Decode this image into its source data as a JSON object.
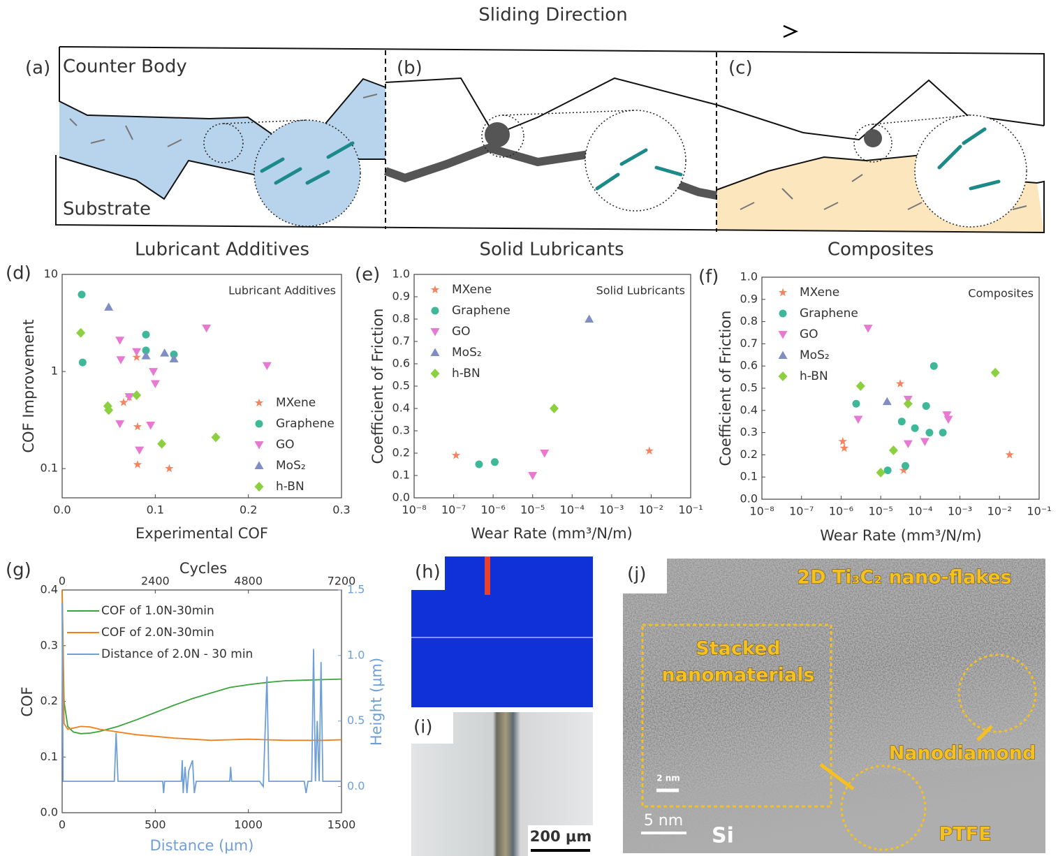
{
  "diagram": {
    "title": "Sliding Direction",
    "panel_labels": [
      "(a)",
      "(b)",
      "(c)"
    ],
    "counter_body": "Counter Body",
    "substrate": "Substrate",
    "sections": [
      "Lubricant Additives",
      "Solid Lubricants",
      "Composites"
    ]
  },
  "images": {
    "h": {
      "label": "(h)"
    },
    "i": {
      "label": "(i)",
      "scale_bar": "200 μm"
    },
    "j": {
      "label": "(j)",
      "annotations": [
        "2D Ti₃C₂ nano-flakes",
        "Stacked",
        "nanomaterials",
        "Nanodiamond",
        "PTFE",
        "Si",
        "5 nm",
        "2 nm"
      ]
    }
  },
  "chart_data": [
    {
      "type": "scatter",
      "panel_label": "(d)",
      "annotation": "Lubricant Additives",
      "xlabel": "Experimental COF",
      "ylabel": "COF Improvement",
      "xlim": [
        0,
        0.3
      ],
      "xticks": [
        {
          "value": 0,
          "label": "0.0"
        },
        0.1,
        0.2,
        0.3
      ],
      "ylim": [
        0.05,
        10
      ],
      "ylog": true,
      "yticks": [
        0.1,
        1,
        10
      ],
      "grid": false,
      "legend": "center right",
      "series": [
        {
          "name": "MXene",
          "color": "#f4845f",
          "marker": "star",
          "x": [
            0.066,
            0.072,
            0.08,
            0.081,
            0.081,
            0.115
          ],
          "values": [
            0.48,
            0.54,
            1.4,
            0.27,
            0.11,
            0.1
          ]
        },
        {
          "name": "Graphene",
          "color": "#3fb89a",
          "marker": "circle",
          "x": [
            0.021,
            0.022,
            0.09,
            0.09,
            0.12
          ],
          "values": [
            6.2,
            1.24,
            2.4,
            1.65,
            1.5
          ]
        },
        {
          "name": "GO",
          "color": "#e879d3",
          "marker": "triangle-down",
          "x": [
            0.155,
            0.22,
            0.062,
            0.08,
            0.063,
            0.098,
            0.1,
            0.072,
            0.062,
            0.095,
            0.083
          ],
          "values": [
            2.8,
            1.15,
            2.1,
            1.6,
            1.32,
            1.0,
            0.75,
            0.55,
            0.29,
            0.28,
            0.155
          ]
        },
        {
          "name": "MoS₂",
          "color": "#7f8fc4",
          "marker": "triangle-up",
          "x": [
            0.05,
            0.09,
            0.11,
            0.12
          ],
          "values": [
            4.6,
            1.45,
            1.55,
            1.35
          ]
        },
        {
          "name": "h-BN",
          "color": "#8ccf3f",
          "marker": "diamond",
          "x": [
            0.02,
            0.08,
            0.049,
            0.05,
            0.107,
            0.165
          ],
          "values": [
            2.5,
            0.57,
            0.44,
            0.4,
            0.18,
            0.21
          ]
        }
      ]
    },
    {
      "type": "scatter",
      "panel_label": "(e)",
      "annotation": "Solid Lubricants",
      "xlabel": "Wear Rate (mm³/N/m)",
      "ylabel": "Coefficient of Friction",
      "xlim": [
        1e-08,
        0.1
      ],
      "xlog": true,
      "xticks": [
        {
          "value": 1e-08,
          "label": "10⁻⁸"
        },
        {
          "value": 1e-07,
          "label": "10⁻⁷"
        },
        {
          "value": 1e-06,
          "label": "10⁻⁶"
        },
        {
          "value": 1e-05,
          "label": "10⁻⁵"
        },
        {
          "value": 0.0001,
          "label": "10⁻⁴"
        },
        {
          "value": 0.001,
          "label": "10⁻³"
        },
        {
          "value": 0.01,
          "label": "10⁻²"
        },
        {
          "value": 0.1,
          "label": "10⁻¹"
        }
      ],
      "ylim": [
        0,
        1
      ],
      "yticks": [
        {
          "value": 0,
          "label": "0.0"
        },
        0.1,
        0.2,
        0.3,
        0.4,
        0.5,
        0.6,
        0.7,
        0.8,
        0.9,
        {
          "value": 1,
          "label": "1.0"
        }
      ],
      "grid": false,
      "legend": "upper left",
      "series": [
        {
          "name": "MXene",
          "color": "#f4845f",
          "marker": "star",
          "x": [
            1.15e-07,
            0.009
          ],
          "values": [
            0.19,
            0.21
          ]
        },
        {
          "name": "Graphene",
          "color": "#3fb89a",
          "marker": "circle",
          "x": [
            4.4e-07,
            1.1e-06
          ],
          "values": [
            0.15,
            0.16
          ]
        },
        {
          "name": "GO",
          "color": "#e879d3",
          "marker": "triangle-down",
          "x": [
            1e-05,
            2e-05
          ],
          "values": [
            0.1,
            0.2
          ]
        },
        {
          "name": "MoS₂",
          "color": "#7f8fc4",
          "marker": "triangle-up",
          "x": [
            0.00027
          ],
          "values": [
            0.8
          ]
        },
        {
          "name": "h-BN",
          "color": "#8ccf3f",
          "marker": "diamond",
          "x": [
            3.5e-05
          ],
          "values": [
            0.4
          ]
        }
      ]
    },
    {
      "type": "scatter",
      "panel_label": "(f)",
      "annotation": "Composites",
      "xlabel": "Wear Rate (mm³/N/m)",
      "ylabel": "Coefficient of Friction",
      "xlim": [
        1e-08,
        0.1
      ],
      "xlog": true,
      "xticks": [
        {
          "value": 1e-08,
          "label": "10⁻⁸"
        },
        {
          "value": 1e-07,
          "label": "10⁻⁷"
        },
        {
          "value": 1e-06,
          "label": "10⁻⁶"
        },
        {
          "value": 1e-05,
          "label": "10⁻⁵"
        },
        {
          "value": 0.0001,
          "label": "10⁻⁴"
        },
        {
          "value": 0.001,
          "label": "10⁻³"
        },
        {
          "value": 0.01,
          "label": "10⁻²"
        },
        {
          "value": 0.1,
          "label": "10⁻¹"
        }
      ],
      "ylim": [
        0,
        1
      ],
      "yticks": [
        {
          "value": 0,
          "label": "0.0"
        },
        0.1,
        0.2,
        0.3,
        0.4,
        0.5,
        0.6,
        0.7,
        0.8,
        0.9,
        {
          "value": 1,
          "label": "1.0"
        }
      ],
      "grid": false,
      "legend": "upper left",
      "series": [
        {
          "name": "MXene",
          "color": "#f4845f",
          "marker": "star",
          "x": [
            1.1e-06,
            1.2e-06,
            3.1e-05,
            3.8e-05,
            0.018
          ],
          "values": [
            0.26,
            0.23,
            0.52,
            0.13,
            0.2
          ]
        },
        {
          "name": "Graphene",
          "color": "#3fb89a",
          "marker": "circle",
          "x": [
            2.4e-06,
            1.5e-05,
            3.4e-05,
            4.2e-05,
            7.3e-05,
            0.00014,
            0.00022,
            0.00017,
            0.00037
          ],
          "values": [
            0.43,
            0.13,
            0.35,
            0.15,
            0.32,
            0.42,
            0.6,
            0.3,
            0.3
          ]
        },
        {
          "name": "GO",
          "color": "#e879d3",
          "marker": "triangle-down",
          "x": [
            4.8e-06,
            2.7e-06,
            4.9e-05,
            4.9e-05,
            0.00013,
            0.00047,
            0.00051
          ],
          "values": [
            0.77,
            0.36,
            0.45,
            0.25,
            0.26,
            0.38,
            0.36
          ]
        },
        {
          "name": "MoS₂",
          "color": "#7f8fc4",
          "marker": "triangle-up",
          "x": [
            1.45e-05
          ],
          "values": [
            0.44
          ]
        },
        {
          "name": "h-BN",
          "color": "#8ccf3f",
          "marker": "diamond",
          "x": [
            3.1e-06,
            4.9e-05,
            2.1e-05,
            1e-05,
            0.0078
          ],
          "values": [
            0.51,
            0.43,
            0.22,
            0.12,
            0.57
          ]
        }
      ]
    },
    {
      "type": "line",
      "panel_label": "(g)",
      "xlabel": "Distance (μm)",
      "ylabel": "COF",
      "y2label": "Height (μm)",
      "x2label": "Cycles",
      "xlim": [
        0,
        1500
      ],
      "xticks": [
        0,
        500,
        1000,
        1500
      ],
      "x2lim": [
        0,
        7200
      ],
      "x2ticks": [
        0,
        2400,
        4800,
        7200
      ],
      "ylim": [
        0,
        0.4
      ],
      "yticks": [
        {
          "value": 0,
          "label": "0.0"
        },
        0.1,
        0.2,
        0.3,
        0.4
      ],
      "y2lim": [
        -0.2,
        1.5
      ],
      "y2ticks": [
        {
          "value": 0,
          "label": "0.0"
        },
        0.5,
        {
          "value": 1,
          "label": "1.0"
        },
        1.5
      ],
      "grid": false,
      "legend": "upper left",
      "series": [
        {
          "name": "COF of 1.0N-30min",
          "color": "#3aa53a",
          "x": [
            0,
            10,
            30,
            60,
            100,
            150,
            200,
            300,
            400,
            500,
            600,
            700,
            800,
            900,
            1000,
            1100,
            1200,
            1300,
            1400,
            1500
          ],
          "values": [
            0.4,
            0.2,
            0.155,
            0.145,
            0.142,
            0.143,
            0.146,
            0.155,
            0.167,
            0.18,
            0.193,
            0.205,
            0.215,
            0.225,
            0.23,
            0.234,
            0.237,
            0.238,
            0.239,
            0.24
          ]
        },
        {
          "name": "COF of 2.0N-30min",
          "color": "#f07f1b",
          "x": [
            0,
            10,
            30,
            60,
            100,
            150,
            200,
            300,
            400,
            500,
            600,
            700,
            800,
            900,
            1000,
            1100,
            1200,
            1300,
            1400,
            1500
          ],
          "values": [
            0.4,
            0.16,
            0.15,
            0.152,
            0.155,
            0.154,
            0.15,
            0.145,
            0.14,
            0.137,
            0.134,
            0.132,
            0.13,
            0.131,
            0.132,
            0.131,
            0.13,
            0.13,
            0.13,
            0.131
          ]
        },
        {
          "name": "Distance of 2.0N - 30 min",
          "color": "#6f9fd8",
          "axis": "y2",
          "x": [
            0,
            5,
            10,
            280,
            290,
            300,
            540,
            545,
            550,
            640,
            645,
            650,
            660,
            670,
            680,
            700,
            710,
            720,
            900,
            905,
            910,
            1060,
            1080,
            1100,
            1110,
            1120,
            1300,
            1310,
            1320,
            1340,
            1350,
            1360,
            1370,
            1380,
            1390,
            1400,
            1500
          ],
          "values": [
            1.4,
            0.04,
            0.04,
            0.04,
            0.41,
            0.04,
            0.04,
            -0.05,
            0.04,
            0.04,
            0.2,
            -0.05,
            0.15,
            -0.05,
            0.12,
            0.2,
            -0.05,
            0.04,
            0.04,
            0.15,
            0.04,
            0.04,
            0.0,
            0.84,
            0.04,
            0.04,
            0.04,
            -0.05,
            0.04,
            0.04,
            1.05,
            0.04,
            0.5,
            0.04,
            0.95,
            0.04,
            0.04
          ]
        }
      ]
    }
  ]
}
